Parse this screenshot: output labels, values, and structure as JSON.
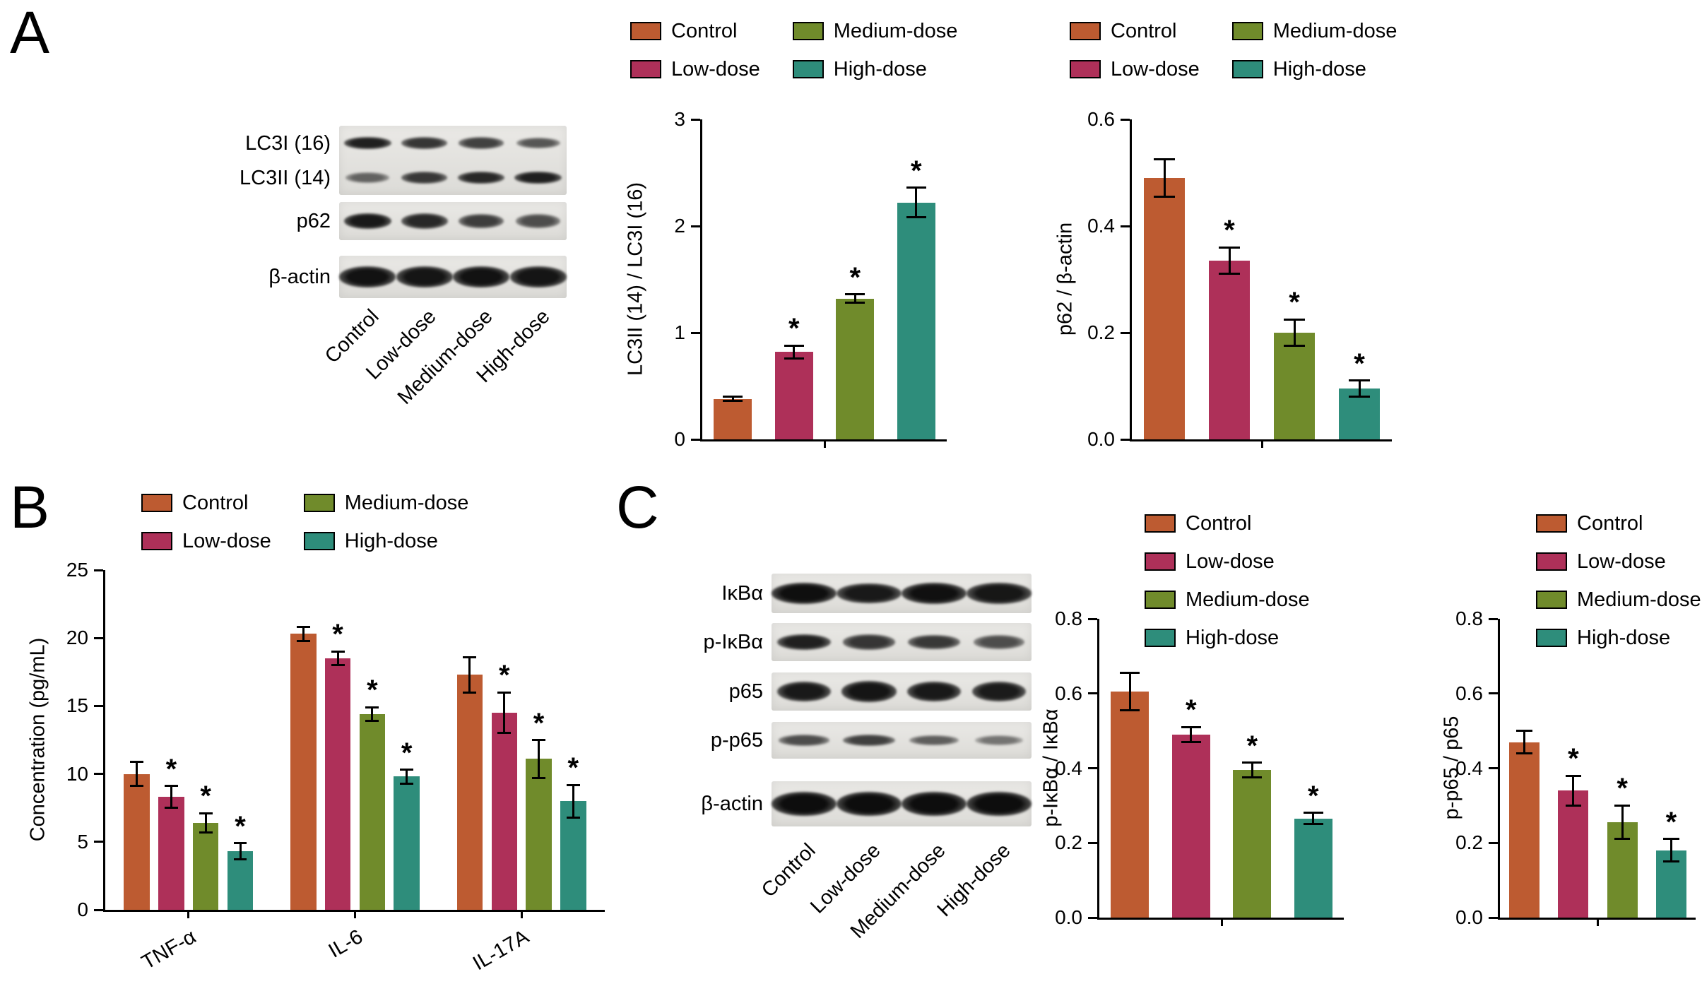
{
  "figure": {
    "panels": [
      {
        "id": "A",
        "label": "A"
      },
      {
        "id": "B",
        "label": "B"
      },
      {
        "id": "C",
        "label": "C"
      }
    ]
  },
  "colors": {
    "Control": "#bd5b31",
    "Low-dose": "#ae3059",
    "Medium-dose": "#708b2b",
    "High-dose": "#2e8d7b"
  },
  "groups": [
    "Control",
    "Low-dose",
    "Medium-dose",
    "High-dose"
  ],
  "significance_marker": "*",
  "chart_data": {
    "a1": {
      "type": "bar",
      "title": "",
      "xlabel": "",
      "ylabel": "LC3II (14) / LC3I (16)",
      "ylim": [
        0,
        3
      ],
      "yticks": [
        "0",
        "1",
        "2",
        "3"
      ],
      "grid": false,
      "legend_position": "top-2col",
      "categories": [
        ""
      ],
      "series": [
        {
          "name": "Control",
          "values": [
            0.38
          ],
          "errors": [
            0.02
          ],
          "sig": [
            false
          ]
        },
        {
          "name": "Low-dose",
          "values": [
            0.82
          ],
          "errors": [
            0.06
          ],
          "sig": [
            true
          ]
        },
        {
          "name": "Medium-dose",
          "values": [
            1.32
          ],
          "errors": [
            0.04
          ],
          "sig": [
            true
          ]
        },
        {
          "name": "High-dose",
          "values": [
            2.22
          ],
          "errors": [
            0.14
          ],
          "sig": [
            true
          ]
        }
      ]
    },
    "a2": {
      "type": "bar",
      "title": "",
      "xlabel": "",
      "ylabel": "p62 / β-actin",
      "ylim": [
        0,
        0.6
      ],
      "yticks": [
        "0.0",
        "0.2",
        "0.4",
        "0.6"
      ],
      "grid": false,
      "legend_position": "top-2col",
      "categories": [
        ""
      ],
      "series": [
        {
          "name": "Control",
          "values": [
            0.49
          ],
          "errors": [
            0.035
          ],
          "sig": [
            false
          ]
        },
        {
          "name": "Low-dose",
          "values": [
            0.335
          ],
          "errors": [
            0.025
          ],
          "sig": [
            true
          ]
        },
        {
          "name": "Medium-dose",
          "values": [
            0.2
          ],
          "errors": [
            0.025
          ],
          "sig": [
            true
          ]
        },
        {
          "name": "High-dose",
          "values": [
            0.095
          ],
          "errors": [
            0.015
          ],
          "sig": [
            true
          ]
        }
      ]
    },
    "b": {
      "type": "bar",
      "title": "",
      "xlabel": "",
      "ylabel": "Concentration (pg/mL)",
      "ylim": [
        0,
        25
      ],
      "yticks": [
        "0",
        "5",
        "10",
        "15",
        "20",
        "25"
      ],
      "grid": false,
      "legend_position": "top-2col",
      "rotated_xlabels": true,
      "categories": [
        "TNF-α",
        "IL-6",
        "IL-17A"
      ],
      "series": [
        {
          "name": "Control",
          "values": [
            10.0,
            20.3,
            17.3
          ],
          "errors": [
            0.9,
            0.5,
            1.3
          ],
          "sig": [
            false,
            false,
            false
          ]
        },
        {
          "name": "Low-dose",
          "values": [
            8.3,
            18.5,
            14.5
          ],
          "errors": [
            0.8,
            0.5,
            1.5
          ],
          "sig": [
            true,
            true,
            true
          ]
        },
        {
          "name": "Medium-dose",
          "values": [
            6.4,
            14.4,
            11.1
          ],
          "errors": [
            0.7,
            0.5,
            1.4
          ],
          "sig": [
            true,
            true,
            true
          ]
        },
        {
          "name": "High-dose",
          "values": [
            4.3,
            9.8,
            8.0
          ],
          "errors": [
            0.6,
            0.5,
            1.2
          ],
          "sig": [
            true,
            true,
            true
          ]
        }
      ]
    },
    "c1": {
      "type": "bar",
      "title": "",
      "xlabel": "",
      "ylabel": "p-IκBα / IκBα",
      "ylim": [
        0,
        0.8
      ],
      "yticks": [
        "0.0",
        "0.2",
        "0.4",
        "0.6",
        "0.8"
      ],
      "grid": false,
      "legend_position": "top-right-column",
      "categories": [
        ""
      ],
      "series": [
        {
          "name": "Control",
          "values": [
            0.605
          ],
          "errors": [
            0.05
          ],
          "sig": [
            false
          ]
        },
        {
          "name": "Low-dose",
          "values": [
            0.49
          ],
          "errors": [
            0.02
          ],
          "sig": [
            true
          ]
        },
        {
          "name": "Medium-dose",
          "values": [
            0.395
          ],
          "errors": [
            0.02
          ],
          "sig": [
            true
          ]
        },
        {
          "name": "High-dose",
          "values": [
            0.265
          ],
          "errors": [
            0.015
          ],
          "sig": [
            true
          ]
        }
      ]
    },
    "c2": {
      "type": "bar",
      "title": "",
      "xlabel": "",
      "ylabel": "p-p65 / p65",
      "ylim": [
        0,
        0.8
      ],
      "yticks": [
        "0.0",
        "0.2",
        "0.4",
        "0.6",
        "0.8"
      ],
      "grid": false,
      "legend_position": "top-right-column",
      "categories": [
        ""
      ],
      "series": [
        {
          "name": "Control",
          "values": [
            0.47
          ],
          "errors": [
            0.03
          ],
          "sig": [
            false
          ]
        },
        {
          "name": "Low-dose",
          "values": [
            0.34
          ],
          "errors": [
            0.04
          ],
          "sig": [
            true
          ]
        },
        {
          "name": "Medium-dose",
          "values": [
            0.255
          ],
          "errors": [
            0.045
          ],
          "sig": [
            true
          ]
        },
        {
          "name": "High-dose",
          "values": [
            0.18
          ],
          "errors": [
            0.03
          ],
          "sig": [
            true
          ]
        }
      ]
    }
  },
  "blots": {
    "a": {
      "lane_labels": [
        "Control",
        "Low-dose",
        "Medium-dose",
        "High-dose"
      ],
      "strips": [
        {
          "rows": [
            {
              "label": "LC3I (16)",
              "thickness": "thin",
              "bands": [
                0.85,
                0.72,
                0.65,
                0.5
              ]
            },
            {
              "label": "LC3II (14)",
              "thickness": "thin",
              "bands": [
                0.42,
                0.7,
                0.8,
                0.85
              ]
            }
          ]
        },
        {
          "rows": [
            {
              "label": "p62",
              "thickness": "medium",
              "bands": [
                0.9,
                0.8,
                0.66,
                0.55
              ]
            }
          ]
        },
        {
          "rows": [
            {
              "label": "β-actin",
              "thickness": "thick",
              "wide": true,
              "bands": [
                0.95,
                0.93,
                0.95,
                0.93
              ]
            }
          ]
        }
      ]
    },
    "c": {
      "lane_labels": [
        "Control",
        "Low-dose",
        "Medium-dose",
        "High-dose"
      ],
      "strips": [
        {
          "rows": [
            {
              "label": "IκBα",
              "thickness": "thick",
              "wide": true,
              "bands": [
                0.97,
                0.9,
                0.96,
                0.92
              ]
            }
          ]
        },
        {
          "rows": [
            {
              "label": "p-IκBα",
              "thickness": "medium",
              "bands": [
                0.85,
                0.72,
                0.7,
                0.55
              ]
            }
          ]
        },
        {
          "rows": [
            {
              "label": "p65",
              "thickness": "thick",
              "bands": [
                0.9,
                0.93,
                0.9,
                0.88
              ]
            }
          ]
        },
        {
          "rows": [
            {
              "label": "p-p65",
              "thickness": "thin",
              "bands": [
                0.55,
                0.65,
                0.45,
                0.3
              ]
            }
          ]
        },
        {
          "rows": [
            {
              "label": "β-actin",
              "thickness": "heavy",
              "wide": true,
              "bands": [
                0.98,
                0.98,
                0.98,
                0.98
              ]
            }
          ]
        }
      ]
    }
  }
}
